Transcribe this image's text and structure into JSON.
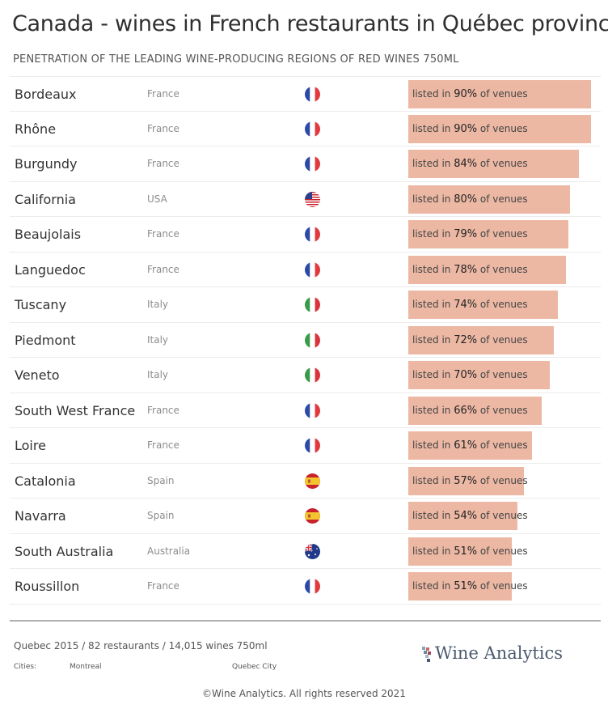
{
  "header": {
    "title": "Canada - wines in French restaurants in Québec province",
    "subtitle": "PENETRATION OF THE LEADING WINE-PRODUCING REGIONS OF RED WINES 750ML"
  },
  "bar_text": {
    "prefix": "listed in ",
    "suffix": " of venues"
  },
  "chart_data": {
    "type": "bar",
    "orientation": "horizontal",
    "unit": "%",
    "xlim": [
      0,
      100
    ],
    "bar_color": "#ecb8a4",
    "rows": [
      {
        "region": "Bordeaux",
        "country": "France",
        "flag": "france-flag-icon",
        "value": 90
      },
      {
        "region": "Rhône",
        "country": "France",
        "flag": "france-flag-icon",
        "value": 90
      },
      {
        "region": "Burgundy",
        "country": "France",
        "flag": "france-flag-icon",
        "value": 84
      },
      {
        "region": "California",
        "country": "USA",
        "flag": "usa-flag-icon",
        "value": 80
      },
      {
        "region": "Beaujolais",
        "country": "France",
        "flag": "france-flag-icon",
        "value": 79
      },
      {
        "region": "Languedoc",
        "country": "France",
        "flag": "france-flag-icon",
        "value": 78
      },
      {
        "region": "Tuscany",
        "country": "Italy",
        "flag": "italy-flag-icon",
        "value": 74
      },
      {
        "region": "Piedmont",
        "country": "Italy",
        "flag": "italy-flag-icon",
        "value": 72
      },
      {
        "region": "Veneto",
        "country": "Italy",
        "flag": "italy-flag-icon",
        "value": 70
      },
      {
        "region": "South West France",
        "country": "France",
        "flag": "france-flag-icon",
        "value": 66
      },
      {
        "region": "Loire",
        "country": "France",
        "flag": "france-flag-icon",
        "value": 61
      },
      {
        "region": "Catalonia",
        "country": "Spain",
        "flag": "spain-flag-icon",
        "value": 57
      },
      {
        "region": "Navarra",
        "country": "Spain",
        "flag": "spain-flag-icon",
        "value": 54
      },
      {
        "region": "South Australia",
        "country": "Australia",
        "flag": "australia-flag-icon",
        "value": 51
      },
      {
        "region": "Roussillon",
        "country": "France",
        "flag": "france-flag-icon",
        "value": 51
      }
    ]
  },
  "footer": {
    "info": "Quebec 2015 / 82 restaurants  / 14,015 wines 750ml",
    "cities_label": "Cities:",
    "city1": "Montreal",
    "city2": "Quebec City",
    "logo_text": "Wine Analytics",
    "copyright": "©Wine Analytics. All rights reserved 2021"
  }
}
